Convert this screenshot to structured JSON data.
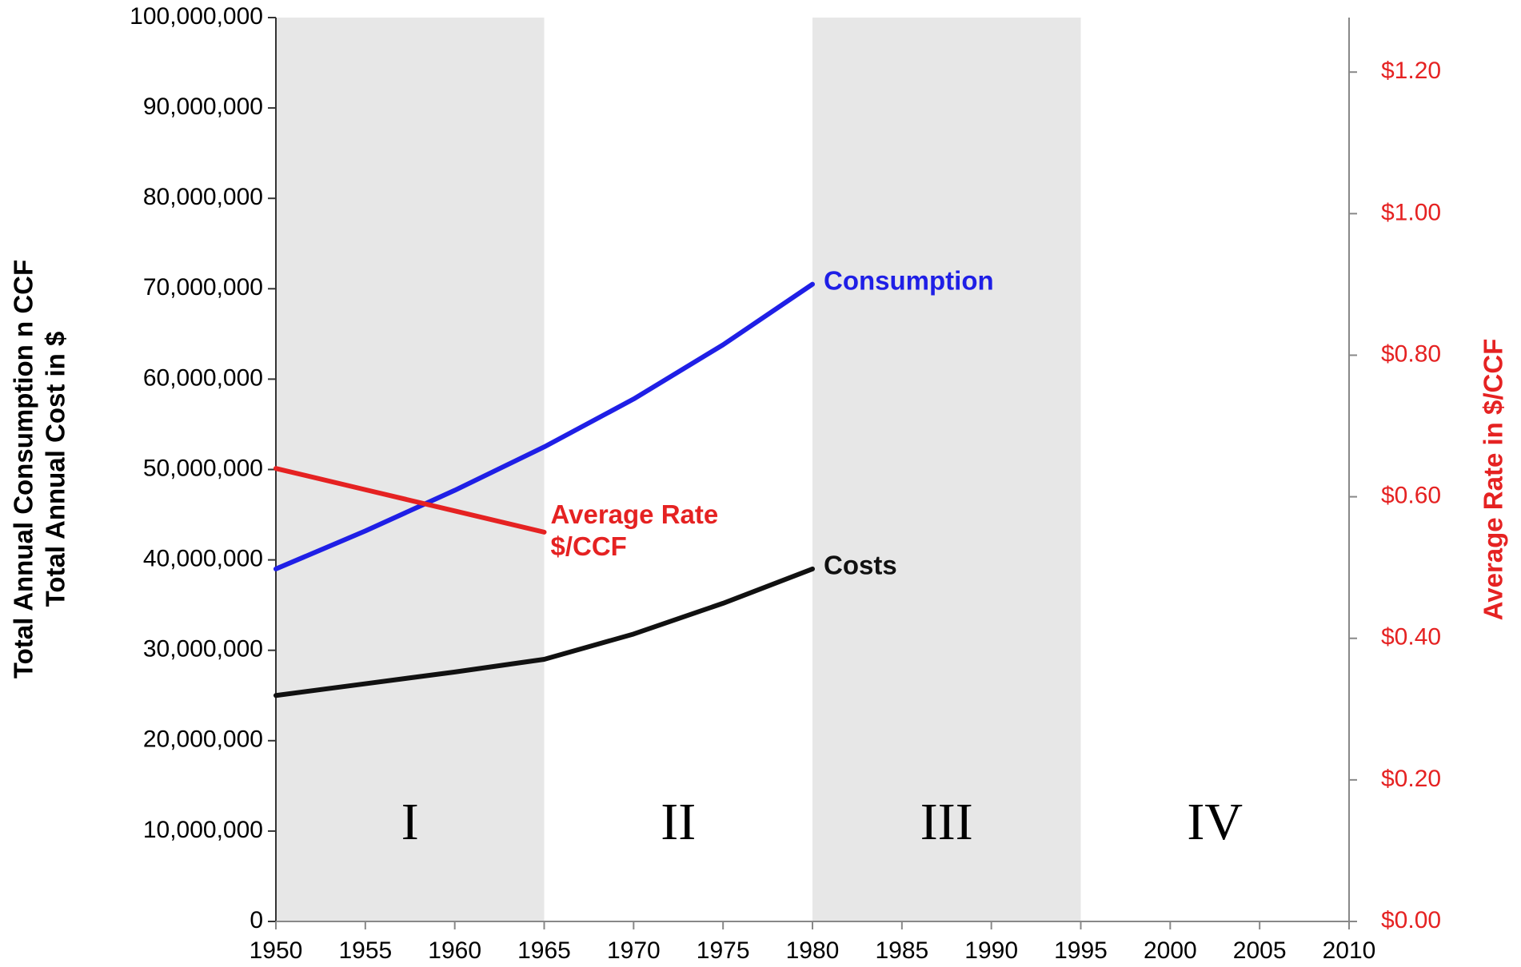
{
  "chart_data": {
    "type": "line",
    "x": [
      1950,
      1955,
      1960,
      1965,
      1970,
      1975,
      1980
    ],
    "series": [
      {
        "name": "Consumption",
        "color": "#1f1fe6",
        "values": [
          39000000,
          43200000,
          47700000,
          52500000,
          57800000,
          63800000,
          70500000
        ]
      },
      {
        "name": "Costs",
        "color": "#111111",
        "values": [
          25000000,
          26300000,
          27600000,
          29000000,
          31800000,
          35200000,
          39000000
        ]
      },
      {
        "name": "Average Rate $/CCF",
        "color": "#e52222",
        "axis": "y2",
        "values": [
          0.64,
          0.61,
          0.58,
          0.55,
          null,
          null,
          null
        ]
      }
    ],
    "regions": [
      {
        "label": "I",
        "x": [
          1950,
          1965
        ],
        "shaded": true
      },
      {
        "label": "II",
        "x": [
          1965,
          1980
        ],
        "shaded": false
      },
      {
        "label": "III",
        "x": [
          1980,
          1995
        ],
        "shaded": true
      },
      {
        "label": "IV",
        "x": [
          1995,
          2010
        ],
        "shaded": false
      }
    ],
    "ylabel": [
      "Total Annual Consumption n CCF",
      "Total Annual Cost in $"
    ],
    "y2label": "Average Rate in $/CCF",
    "xlim": [
      1950,
      2010
    ],
    "xticks": [
      1950,
      1955,
      1960,
      1965,
      1970,
      1975,
      1980,
      1985,
      1990,
      1995,
      2000,
      2005,
      2010
    ],
    "ylim": [
      0,
      100000000
    ],
    "yticks": [
      0,
      {
        "value": 10000000,
        "label": "10,000,000"
      },
      {
        "value": 20000000,
        "label": "20,000,000"
      },
      {
        "value": 30000000,
        "label": "30,000,000"
      },
      {
        "value": 40000000,
        "label": "40,000,000"
      },
      {
        "value": 50000000,
        "label": "50,000,000"
      },
      {
        "value": 60000000,
        "label": "60,000,000"
      },
      {
        "value": 70000000,
        "label": "70,000,000"
      },
      {
        "value": 80000000,
        "label": "80,000,000"
      },
      {
        "value": 90000000,
        "label": "90,000,000"
      },
      {
        "value": 100000000,
        "label": "100,000,000"
      }
    ],
    "y2lim": [
      0,
      1.277
    ],
    "y2ticks": [
      {
        "value": 0,
        "label": "$0.00"
      },
      {
        "value": 0.2,
        "label": "$0.20"
      },
      {
        "value": 0.4,
        "label": "$0.40"
      },
      {
        "value": 0.6,
        "label": "$0.60"
      },
      {
        "value": 0.8,
        "label": "$0.80"
      },
      {
        "value": 1.0,
        "label": "$1.00"
      },
      {
        "value": 1.2,
        "label": "$1.20"
      }
    ],
    "y2color": "#e52222",
    "shade_color": "#e7e7e7"
  }
}
